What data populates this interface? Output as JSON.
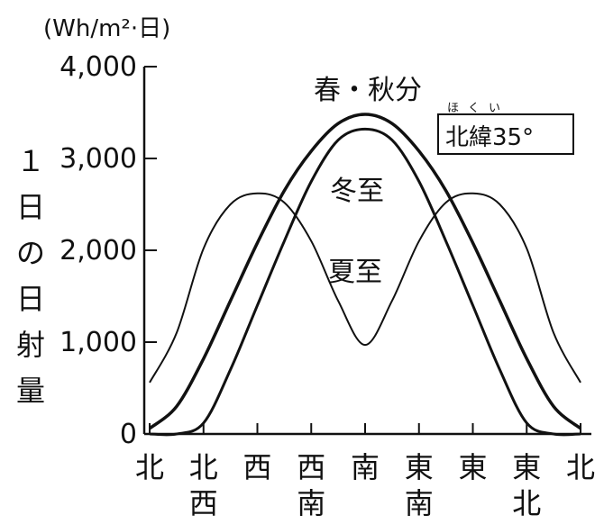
{
  "chart_data": {
    "type": "line",
    "unit": "(Wh/m²·日)",
    "ylabel": "１日の日射量",
    "ylim": [
      0,
      4000
    ],
    "yticks": [
      "4,000",
      "3,000",
      "2,000",
      "1,000",
      "0"
    ],
    "ytick_values": [
      4000,
      3000,
      2000,
      1000,
      0
    ],
    "x_categories": [
      "北",
      "北西",
      "西",
      "西南",
      "南",
      "東南",
      "東",
      "東北",
      "北"
    ],
    "x": [
      0,
      45,
      90,
      135,
      180,
      225,
      270,
      315,
      360
    ],
    "latitude_label": "北緯35°",
    "latitude_ruby": "ほくい",
    "grid": false,
    "series": [
      {
        "name": "春・秋分",
        "stroke_width": 3.5,
        "x": [
          0,
          22.5,
          45,
          67.5,
          90,
          112.5,
          135,
          157.5,
          180,
          202.5,
          225,
          247.5,
          270,
          292.5,
          315,
          337.5,
          360
        ],
        "values": [
          60,
          300,
          820,
          1450,
          2080,
          2650,
          3080,
          3380,
          3480,
          3380,
          3080,
          2650,
          2080,
          1450,
          820,
          300,
          60
        ]
      },
      {
        "name": "冬至",
        "stroke_width": 3,
        "x": [
          0,
          22.5,
          45,
          67.5,
          90,
          112.5,
          135,
          157.5,
          180,
          202.5,
          225,
          247.5,
          270,
          292.5,
          315,
          337.5,
          360
        ],
        "values": [
          0,
          0,
          120,
          700,
          1400,
          2100,
          2750,
          3200,
          3320,
          3200,
          2750,
          2100,
          1400,
          700,
          120,
          0,
          0
        ]
      },
      {
        "name": "夏至",
        "stroke_width": 2,
        "x": [
          0,
          22.5,
          45,
          67.5,
          90,
          112.5,
          135,
          157.5,
          180,
          202.5,
          225,
          247.5,
          270,
          292.5,
          315,
          337.5,
          360
        ],
        "values": [
          560,
          1100,
          2020,
          2500,
          2620,
          2520,
          2100,
          1450,
          970,
          1450,
          2100,
          2520,
          2620,
          2500,
          2020,
          1100,
          560
        ]
      }
    ]
  }
}
